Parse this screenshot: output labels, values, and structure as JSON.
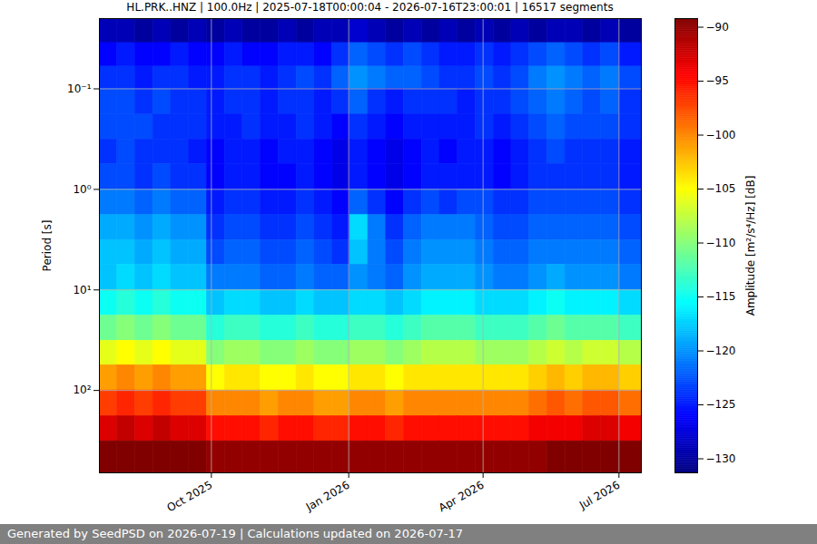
{
  "chart_data": {
    "type": "heatmap",
    "title": "HL.PRK..HNZ | 100.0Hz | 2025-07-18T00:00:04 - 2026-07-16T23:00:01 | 16517 segments",
    "ylabel": "Period [s]",
    "footer": "Generated by SeedPSD on 2026-07-19 | Calculations updated on 2026-07-17",
    "log": "y",
    "grid": true,
    "xlim": [
      "2025-07-18",
      "2026-07-16"
    ],
    "xticks": [
      {
        "value": "2025-10-01",
        "label": "Oct 2025"
      },
      {
        "value": "2026-01-01",
        "label": "Jan 2026"
      },
      {
        "value": "2026-04-01",
        "label": "Apr 2026"
      },
      {
        "value": "2026-07-01",
        "label": "Jul 2026"
      }
    ],
    "ylim": [
      0.02,
      660
    ],
    "yticks": [
      {
        "value": 0.1,
        "label": "10⁻¹"
      },
      {
        "value": 1,
        "label": "10⁰"
      },
      {
        "value": 10,
        "label": "10¹"
      },
      {
        "value": 100,
        "label": "10²"
      }
    ],
    "x_edges": [
      "2025-07-18",
      "2025-07-30",
      "2025-08-11",
      "2025-08-23",
      "2025-09-04",
      "2025-09-16",
      "2025-09-28",
      "2025-10-10",
      "2025-10-22",
      "2025-11-03",
      "2025-11-15",
      "2025-11-27",
      "2025-12-09",
      "2025-12-21",
      "2026-01-02",
      "2026-01-14",
      "2026-01-26",
      "2026-02-07",
      "2026-02-19",
      "2026-03-03",
      "2026-03-15",
      "2026-03-27",
      "2026-04-08",
      "2026-04-20",
      "2026-05-02",
      "2026-05-14",
      "2026-05-26",
      "2026-06-07",
      "2026-06-19",
      "2026-07-01",
      "2026-07-16"
    ],
    "y_edges": [
      0.02,
      0.035,
      0.06,
      0.1,
      0.18,
      0.32,
      0.56,
      1,
      1.8,
      3.2,
      5.6,
      10,
      18,
      32,
      56,
      100,
      180,
      320,
      660
    ],
    "values": [
      [
        -129,
        -129,
        -130,
        -129,
        -130,
        -129,
        -130,
        -129,
        -130,
        -130,
        -129,
        -130,
        -129,
        -129,
        -128,
        -129,
        -130,
        -129,
        -130,
        -129,
        -130,
        -129,
        -130,
        -129,
        -130,
        -129,
        -129,
        -130,
        -129,
        -130
      ],
      [
        -126,
        -125,
        -126,
        -126,
        -125,
        -126,
        -126,
        -125,
        -126,
        -126,
        -125,
        -125,
        -126,
        -124,
        -122,
        -123,
        -124,
        -123,
        -124,
        -125,
        -125,
        -124,
        -125,
        -124,
        -123,
        -122,
        -123,
        -124,
        -123,
        -125
      ],
      [
        -124,
        -124,
        -125,
        -124,
        -124,
        -125,
        -125,
        -124,
        -124,
        -125,
        -124,
        -123,
        -124,
        -122,
        -120,
        -121,
        -122,
        -122,
        -123,
        -124,
        -124,
        -123,
        -124,
        -123,
        -121,
        -120,
        -121,
        -122,
        -121,
        -123
      ],
      [
        -123,
        -123,
        -124,
        -123,
        -124,
        -124,
        -125,
        -124,
        -124,
        -125,
        -124,
        -124,
        -125,
        -124,
        -122,
        -124,
        -125,
        -124,
        -124,
        -124,
        -125,
        -124,
        -124,
        -123,
        -122,
        -121,
        -122,
        -123,
        -122,
        -124
      ],
      [
        -123,
        -123,
        -123,
        -124,
        -124,
        -124,
        -125,
        -125,
        -124,
        -125,
        -125,
        -124,
        -125,
        -126,
        -124,
        -125,
        -126,
        -125,
        -125,
        -125,
        -125,
        -124,
        -125,
        -124,
        -123,
        -122,
        -123,
        -123,
        -123,
        -124
      ],
      [
        -124,
        -123,
        -124,
        -124,
        -124,
        -125,
        -126,
        -125,
        -125,
        -126,
        -125,
        -125,
        -126,
        -127,
        -125,
        -126,
        -127,
        -126,
        -125,
        -126,
        -125,
        -125,
        -126,
        -125,
        -124,
        -123,
        -124,
        -124,
        -124,
        -125
      ],
      [
        -123,
        -123,
        -124,
        -123,
        -124,
        -124,
        -126,
        -125,
        -125,
        -126,
        -126,
        -125,
        -126,
        -127,
        -125,
        -126,
        -127,
        -126,
        -125,
        -125,
        -125,
        -125,
        -126,
        -125,
        -124,
        -124,
        -124,
        -124,
        -124,
        -125
      ],
      [
        -121,
        -121,
        -122,
        -121,
        -122,
        -122,
        -125,
        -124,
        -124,
        -125,
        -125,
        -124,
        -125,
        -126,
        -122,
        -124,
        -126,
        -124,
        -123,
        -124,
        -123,
        -123,
        -124,
        -124,
        -123,
        -123,
        -123,
        -123,
        -123,
        -124
      ],
      [
        -119,
        -119,
        -120,
        -119,
        -120,
        -120,
        -124,
        -123,
        -123,
        -124,
        -124,
        -123,
        -124,
        -125,
        -117,
        -121,
        -124,
        -122,
        -121,
        -121,
        -121,
        -122,
        -123,
        -123,
        -122,
        -122,
        -122,
        -122,
        -122,
        -123
      ],
      [
        -118,
        -118,
        -119,
        -118,
        -119,
        -119,
        -123,
        -122,
        -122,
        -123,
        -123,
        -122,
        -123,
        -124,
        -118,
        -121,
        -123,
        -121,
        -120,
        -120,
        -120,
        -121,
        -122,
        -122,
        -121,
        -121,
        -121,
        -121,
        -121,
        -122
      ],
      [
        -118,
        -117,
        -118,
        -117,
        -118,
        -118,
        -121,
        -121,
        -121,
        -122,
        -122,
        -121,
        -122,
        -122,
        -120,
        -121,
        -122,
        -120,
        -119,
        -119,
        -119,
        -120,
        -121,
        -121,
        -120,
        -119,
        -120,
        -120,
        -120,
        -121
      ],
      [
        -115,
        -114,
        -115,
        -114,
        -115,
        -115,
        -118,
        -117,
        -117,
        -118,
        -118,
        -117,
        -118,
        -118,
        -117,
        -117,
        -118,
        -117,
        -116,
        -116,
        -116,
        -117,
        -117,
        -117,
        -116,
        -115,
        -116,
        -116,
        -116,
        -117
      ],
      [
        -111,
        -110,
        -111,
        -110,
        -111,
        -111,
        -114,
        -113,
        -113,
        -114,
        -114,
        -113,
        -114,
        -114,
        -113,
        -113,
        -114,
        -113,
        -112,
        -112,
        -112,
        -113,
        -113,
        -113,
        -112,
        -111,
        -112,
        -112,
        -112,
        -113
      ],
      [
        -106,
        -105,
        -106,
        -105,
        -106,
        -106,
        -110,
        -109,
        -109,
        -110,
        -110,
        -109,
        -110,
        -110,
        -109,
        -109,
        -110,
        -109,
        -108,
        -108,
        -108,
        -109,
        -109,
        -109,
        -108,
        -107,
        -108,
        -107,
        -107,
        -108
      ],
      [
        -101,
        -100,
        -101,
        -100,
        -101,
        -101,
        -105,
        -104,
        -104,
        -105,
        -105,
        -104,
        -105,
        -105,
        -104,
        -104,
        -105,
        -104,
        -104,
        -104,
        -104,
        -104,
        -104,
        -104,
        -103,
        -102,
        -103,
        -102,
        -102,
        -103
      ],
      [
        -97,
        -96,
        -97,
        -96,
        -97,
        -97,
        -100,
        -100,
        -100,
        -101,
        -100,
        -100,
        -101,
        -101,
        -100,
        -100,
        -101,
        -100,
        -100,
        -100,
        -100,
        -100,
        -100,
        -100,
        -99,
        -98,
        -99,
        -98,
        -98,
        -99
      ],
      [
        -93,
        -92,
        -93,
        -92,
        -93,
        -93,
        -95,
        -95,
        -95,
        -96,
        -95,
        -95,
        -96,
        -96,
        -95,
        -95,
        -96,
        -95,
        -95,
        -95,
        -95,
        -95,
        -95,
        -95,
        -94,
        -94,
        -94,
        -93,
        -93,
        -94
      ],
      [
        -89,
        -89,
        -89,
        -89,
        -89,
        -89,
        -90,
        -90,
        -90,
        -90,
        -90,
        -90,
        -90,
        -90,
        -90,
        -90,
        -90,
        -90,
        -90,
        -90,
        -90,
        -90,
        -90,
        -90,
        -90,
        -89,
        -89,
        -89,
        -89,
        -89
      ]
    ],
    "colorbar": {
      "label": "Amplitude [m²/s⁴/Hz] [dB]",
      "range": [
        -131.3,
        -89.2
      ],
      "ticks": [
        -90,
        -95,
        -100,
        -105,
        -110,
        -115,
        -120,
        -125,
        -130
      ]
    }
  }
}
